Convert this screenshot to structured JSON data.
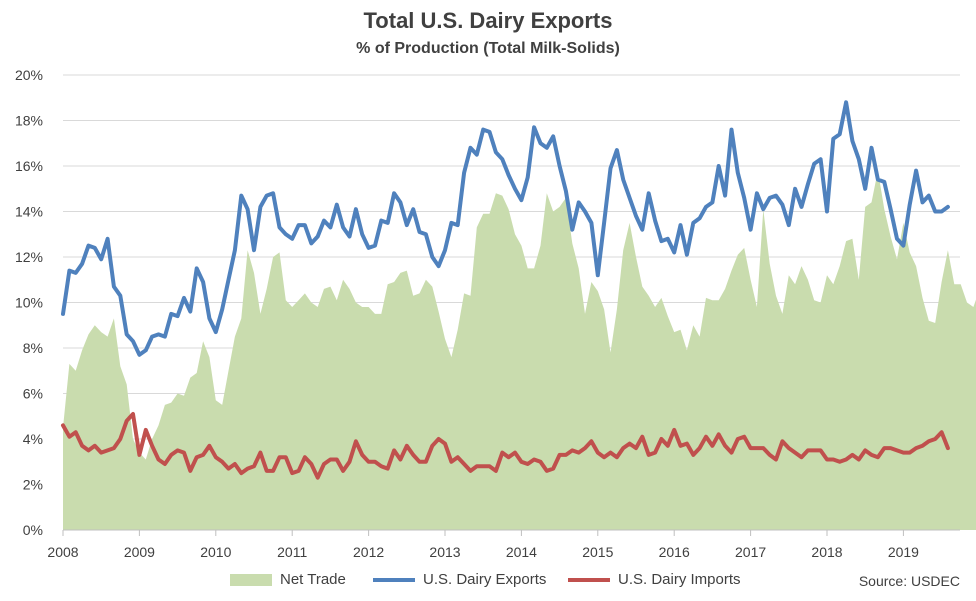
{
  "chart_data": {
    "type": "area",
    "title": "Total U.S. Dairy Exports",
    "subtitle": "% of Production  (Total Milk-Solids)",
    "source": "Source: USDEC",
    "ylim": [
      0,
      20
    ],
    "y_ticks": [
      "0%",
      "2%",
      "4%",
      "6%",
      "8%",
      "10%",
      "12%",
      "14%",
      "16%",
      "18%",
      "20%"
    ],
    "x_ticks": [
      "2008",
      "2009",
      "2010",
      "2011",
      "2012",
      "2013",
      "2014",
      "2015",
      "2016",
      "2017",
      "2018",
      "2019"
    ],
    "x_start": 2008.0,
    "x_step": 0.08333,
    "legend_placement": "bottom",
    "grid": true,
    "series": [
      {
        "name": "Net Trade",
        "kind": "area",
        "color": "#c9dcae",
        "values": [
          4.5,
          7.3,
          7.0,
          7.9,
          8.6,
          9.0,
          8.7,
          8.5,
          9.3,
          7.2,
          6.4,
          4.0,
          3.4,
          3.1,
          4.0,
          4.6,
          5.5,
          5.6,
          6.0,
          5.9,
          6.7,
          6.9,
          8.3,
          7.6,
          5.7,
          5.5,
          7.0,
          8.5,
          9.3,
          12.3,
          11.3,
          9.5,
          10.6,
          12.0,
          12.2,
          10.1,
          9.8,
          10.1,
          10.4,
          10.0,
          9.8,
          10.6,
          10.7,
          10.1,
          11.0,
          10.6,
          10.0,
          9.8,
          9.8,
          9.5,
          9.5,
          10.8,
          10.9,
          11.3,
          11.4,
          10.3,
          10.4,
          11.0,
          10.7,
          9.6,
          8.4,
          7.6,
          8.8,
          10.4,
          10.3,
          13.3,
          13.9,
          13.9,
          14.8,
          14.7,
          14.1,
          13.0,
          12.5,
          11.5,
          11.5,
          12.5,
          14.8,
          14.0,
          14.2,
          14.6,
          12.6,
          11.5,
          9.5,
          10.9,
          10.5,
          9.7,
          7.8,
          9.7,
          12.3,
          13.5,
          12.0,
          10.7,
          10.3,
          9.8,
          10.2,
          9.4,
          8.7,
          8.8,
          7.9,
          9.0,
          8.5,
          10.2,
          10.1,
          10.1,
          10.6,
          11.4,
          12.1,
          12.4,
          11.0,
          9.8,
          14.1,
          11.7,
          10.3,
          9.5,
          11.2,
          10.8,
          11.6,
          11.0,
          10.1,
          10.0,
          11.2,
          10.8,
          11.6,
          12.7,
          12.8,
          11.0,
          14.2,
          14.4,
          15.8,
          14.1,
          12.9,
          11.9,
          13.5,
          12.2,
          11.6,
          10.2,
          9.2,
          9.1,
          10.9,
          12.3,
          10.8,
          10.8,
          10.0,
          9.8,
          10.6
        ]
      },
      {
        "name": "U.S. Dairy Exports",
        "kind": "line",
        "color": "#4f81bd",
        "values": [
          9.5,
          11.4,
          11.3,
          11.7,
          12.5,
          12.4,
          11.9,
          12.8,
          10.7,
          10.3,
          8.6,
          8.3,
          7.7,
          7.9,
          8.5,
          8.6,
          8.5,
          9.5,
          9.4,
          10.2,
          9.6,
          11.5,
          10.9,
          9.3,
          8.7,
          9.7,
          11.0,
          12.3,
          14.7,
          14.1,
          12.3,
          14.2,
          14.7,
          14.8,
          13.3,
          13.0,
          12.8,
          13.4,
          13.4,
          12.6,
          12.9,
          13.6,
          13.3,
          14.3,
          13.3,
          12.9,
          14.1,
          13.0,
          12.4,
          12.5,
          13.6,
          13.5,
          14.8,
          14.4,
          13.4,
          14.1,
          13.1,
          13.0,
          12.0,
          11.6,
          12.3,
          13.5,
          13.4,
          15.7,
          16.8,
          16.5,
          17.6,
          17.5,
          16.6,
          16.3,
          15.6,
          15.0,
          14.5,
          15.5,
          17.7,
          17.0,
          16.8,
          17.3,
          16.0,
          14.9,
          13.2,
          14.4,
          14.0,
          13.5,
          11.2,
          13.5,
          15.9,
          16.7,
          15.4,
          14.6,
          13.8,
          13.2,
          14.8,
          13.6,
          12.7,
          12.8,
          12.2,
          13.4,
          12.1,
          13.5,
          13.7,
          14.2,
          14.4,
          16.0,
          14.7,
          17.6,
          15.7,
          14.6,
          13.2,
          14.8,
          14.1,
          14.6,
          14.7,
          14.3,
          13.4,
          15.0,
          14.2,
          15.2,
          16.1,
          16.3,
          14.0,
          17.2,
          17.4,
          18.8,
          17.1,
          16.3,
          15.0,
          16.8,
          15.4,
          15.3,
          14.1,
          12.8,
          12.5,
          14.3,
          15.8,
          14.4,
          14.7,
          14.0,
          14.0,
          14.2
        ]
      },
      {
        "name": "U.S. Dairy Imports",
        "kind": "line",
        "color": "#c0504d",
        "values": [
          4.6,
          4.1,
          4.3,
          3.7,
          3.5,
          3.7,
          3.4,
          3.5,
          3.6,
          4.0,
          4.8,
          5.1,
          3.3,
          4.4,
          3.7,
          3.1,
          2.9,
          3.3,
          3.5,
          3.4,
          2.6,
          3.2,
          3.3,
          3.7,
          3.2,
          3.0,
          2.7,
          2.9,
          2.5,
          2.7,
          2.8,
          3.4,
          2.6,
          2.6,
          3.2,
          3.2,
          2.5,
          2.6,
          3.2,
          2.9,
          2.3,
          2.9,
          3.1,
          3.1,
          2.6,
          3.0,
          3.9,
          3.3,
          3.0,
          3.0,
          2.8,
          2.7,
          3.5,
          3.1,
          3.7,
          3.3,
          3.0,
          3.0,
          3.7,
          4.0,
          3.8,
          3.0,
          3.2,
          2.9,
          2.6,
          2.8,
          2.8,
          2.8,
          2.6,
          3.4,
          3.2,
          3.4,
          3.0,
          2.9,
          3.1,
          3.0,
          2.6,
          2.7,
          3.3,
          3.3,
          3.5,
          3.4,
          3.6,
          3.9,
          3.4,
          3.2,
          3.4,
          3.2,
          3.6,
          3.8,
          3.6,
          4.1,
          3.3,
          3.4,
          4.0,
          3.7,
          4.4,
          3.7,
          3.8,
          3.3,
          3.6,
          4.1,
          3.7,
          4.2,
          3.7,
          3.4,
          4.0,
          4.1,
          3.6,
          3.6,
          3.6,
          3.3,
          3.1,
          3.9,
          3.6,
          3.4,
          3.2,
          3.5,
          3.5,
          3.5,
          3.1,
          3.1,
          3.0,
          3.1,
          3.3,
          3.1,
          3.5,
          3.3,
          3.2,
          3.6,
          3.6,
          3.5,
          3.4,
          3.4,
          3.6,
          3.7,
          3.9,
          4.0,
          4.3,
          3.6
        ]
      }
    ]
  }
}
